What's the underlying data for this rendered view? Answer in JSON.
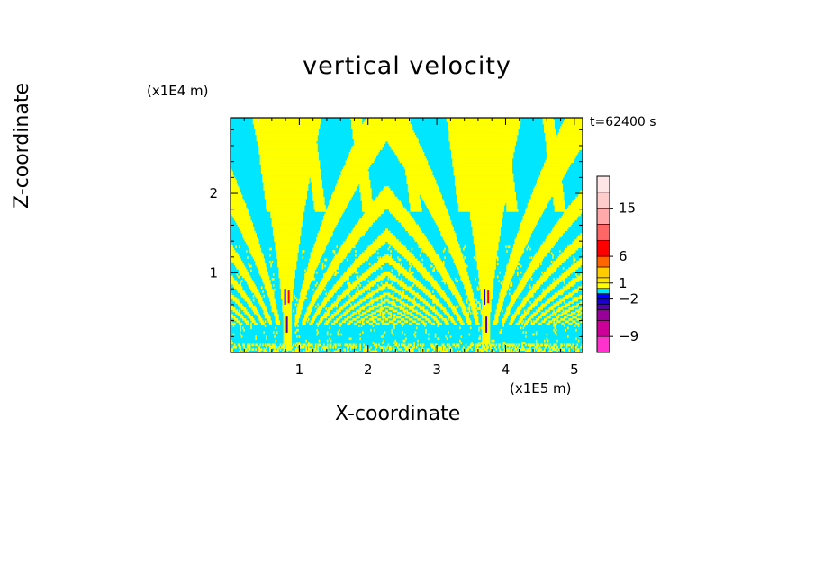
{
  "chart_data": {
    "type": "heatmap",
    "title": "vertical velocity",
    "xlabel": "X-coordinate",
    "ylabel": "Z-coordinate",
    "x_unit": "(x1E5 m)",
    "y_unit": "(x1E4 m)",
    "annotation": "t=62400 s",
    "x_ticks": [
      "1",
      "2",
      "3",
      "4",
      "5"
    ],
    "y_ticks": [
      "1",
      "2"
    ],
    "xlim": [
      0,
      5.12
    ],
    "ylim": [
      0,
      2.95
    ],
    "colorbar": {
      "tick_labels": [
        "15",
        "6",
        "1",
        "-2",
        "-9"
      ],
      "tick_values": [
        15,
        6,
        1,
        -2,
        -9
      ],
      "levels": [
        {
          "min": -12,
          "max": -9,
          "color": "#ff33cc"
        },
        {
          "min": -9,
          "max": -6,
          "color": "#cc0099"
        },
        {
          "min": -6,
          "max": -4,
          "color": "#990099"
        },
        {
          "min": -4,
          "max": -3,
          "color": "#5500aa"
        },
        {
          "min": -3,
          "max": -2,
          "color": "#1a00cc"
        },
        {
          "min": -2,
          "max": -1,
          "color": "#0000ff"
        },
        {
          "min": -1,
          "max": 0,
          "color": "#00e6ff"
        },
        {
          "min": 0,
          "max": 1,
          "color": "#ffff00"
        },
        {
          "min": 1,
          "max": 2,
          "color": "#ffe600"
        },
        {
          "min": 2,
          "max": 4,
          "color": "#ffcc00"
        },
        {
          "min": 4,
          "max": 6,
          "color": "#ff6600"
        },
        {
          "min": 6,
          "max": 9,
          "color": "#ff0000"
        },
        {
          "min": 9,
          "max": 12,
          "color": "#ff6666"
        },
        {
          "min": 12,
          "max": 15,
          "color": "#ffaaaa"
        },
        {
          "min": 15,
          "max": 18,
          "color": "#ffcccc"
        },
        {
          "min": 18,
          "max": 21,
          "color": "#ffe6e6"
        }
      ]
    },
    "field_description_colors": {
      "positive": "#ffff00",
      "negative": "#00e6ff"
    },
    "updraft_columns_x": [
      0.82,
      3.72
    ],
    "grid": false
  }
}
